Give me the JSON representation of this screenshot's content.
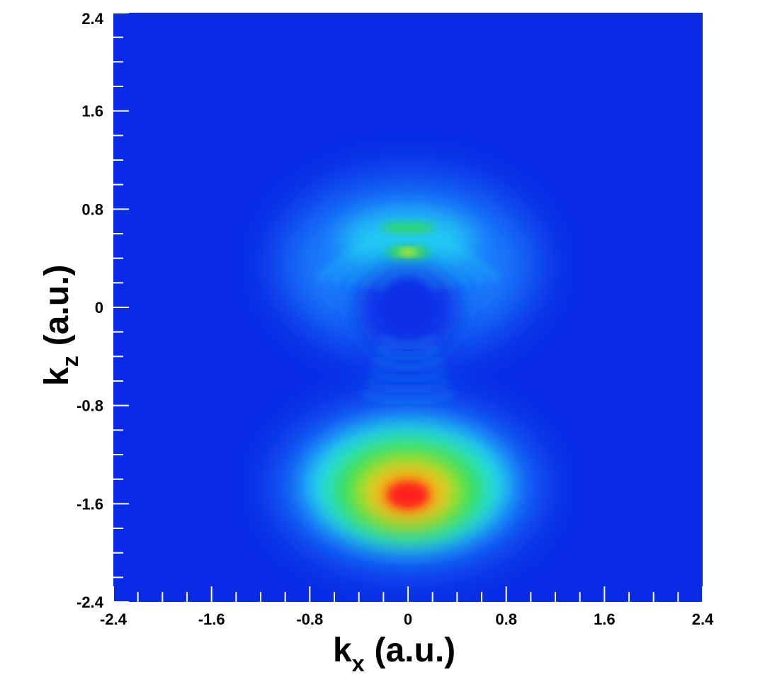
{
  "chart_data": {
    "type": "heatmap",
    "title": "",
    "xlabel": {
      "main": "k",
      "sub": "x",
      "unit": "(a.u.)"
    },
    "ylabel": {
      "main": "k",
      "sub": "z",
      "unit": "(a.u.)"
    },
    "xlim": [
      -2.4,
      2.4
    ],
    "ylim": [
      -2.4,
      2.4
    ],
    "x_ticks": [
      "-2.4",
      "-1.6",
      "-0.8",
      "0",
      "0.8",
      "1.6",
      "2.4"
    ],
    "y_ticks": [
      "2.4",
      "1.6",
      "0.8",
      "0",
      "-0.8",
      "-1.6",
      "-2.4"
    ],
    "minor_ticks_per_major": 4,
    "colormap": [
      "#0a2be6",
      "#1e8cff",
      "#28e6f0",
      "#32dc46",
      "#f0f01e",
      "#ff7814",
      "#ff1e1e"
    ],
    "features": [
      {
        "name": "main-lobe",
        "center": [
          0.0,
          -1.5
        ],
        "peak": "red"
      },
      {
        "name": "upper-halo",
        "center": [
          0.0,
          0.5
        ],
        "peak": "cyan"
      },
      {
        "name": "upper-spot",
        "center": [
          0.0,
          0.45
        ],
        "peak": "yellow"
      },
      {
        "name": "ring-band",
        "center": [
          0.0,
          0.65
        ],
        "peak": "green"
      }
    ],
    "grid": false,
    "legend": "none"
  }
}
